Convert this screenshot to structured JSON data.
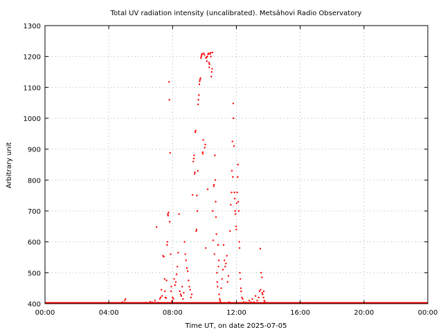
{
  "chart_data": {
    "type": "scatter",
    "title": "Total UV radiation intensity (uncalibrated). Metsähovi Radio Observatory",
    "xlabel": "Time UT, on date 2025-07-05",
    "ylabel": "Arbitrary unit",
    "x_unit": "hours UT",
    "xlim": [
      0,
      24
    ],
    "ylim": [
      400,
      1300
    ],
    "x_ticks": [
      0,
      4,
      8,
      12,
      16,
      20,
      24
    ],
    "x_tick_labels": [
      "00:00",
      "04:00",
      "08:00",
      "12:00",
      "16:00",
      "20:00",
      "00:00"
    ],
    "y_ticks": [
      400,
      500,
      600,
      700,
      800,
      900,
      1000,
      1100,
      1200,
      1300
    ],
    "y_tick_labels": [
      "400",
      "500",
      "600",
      "700",
      "800",
      "900",
      "1000",
      "1100",
      "1200",
      "1300"
    ],
    "grid": true,
    "marker_color": "#ff0000",
    "baseline": {
      "value": 400,
      "from_x": 0,
      "to_x": 24
    },
    "points": [
      [
        4.85,
        405
      ],
      [
        5.0,
        410
      ],
      [
        5.05,
        415
      ],
      [
        6.3,
        402
      ],
      [
        6.6,
        406
      ],
      [
        6.75,
        404
      ],
      [
        6.9,
        410
      ],
      [
        7.0,
        648
      ],
      [
        7.1,
        402
      ],
      [
        7.2,
        415
      ],
      [
        7.25,
        420
      ],
      [
        7.3,
        445
      ],
      [
        7.35,
        425
      ],
      [
        7.4,
        555
      ],
      [
        7.45,
        552
      ],
      [
        7.5,
        480
      ],
      [
        7.52,
        440
      ],
      [
        7.55,
        420
      ],
      [
        7.6,
        418
      ],
      [
        7.62,
        475
      ],
      [
        7.65,
        590
      ],
      [
        7.68,
        600
      ],
      [
        7.7,
        690
      ],
      [
        7.72,
        685
      ],
      [
        7.75,
        695
      ],
      [
        7.78,
        1118
      ],
      [
        7.8,
        1060
      ],
      [
        7.82,
        665
      ],
      [
        7.85,
        888
      ],
      [
        7.88,
        560
      ],
      [
        7.9,
        440
      ],
      [
        7.92,
        455
      ],
      [
        7.95,
        408
      ],
      [
        8.0,
        420
      ],
      [
        8.05,
        415
      ],
      [
        8.1,
        480
      ],
      [
        8.15,
        460
      ],
      [
        8.2,
        470
      ],
      [
        8.25,
        495
      ],
      [
        8.3,
        520
      ],
      [
        8.35,
        565
      ],
      [
        8.4,
        690
      ],
      [
        8.45,
        440
      ],
      [
        8.5,
        430
      ],
      [
        8.55,
        425
      ],
      [
        8.6,
        455
      ],
      [
        8.65,
        415
      ],
      [
        8.7,
        435
      ],
      [
        8.75,
        600
      ],
      [
        8.8,
        560
      ],
      [
        8.85,
        540
      ],
      [
        8.9,
        515
      ],
      [
        8.95,
        505
      ],
      [
        9.0,
        475
      ],
      [
        9.05,
        455
      ],
      [
        9.1,
        445
      ],
      [
        9.15,
        420
      ],
      [
        9.2,
        430
      ],
      [
        9.25,
        752
      ],
      [
        9.3,
        860
      ],
      [
        9.33,
        870
      ],
      [
        9.35,
        880
      ],
      [
        9.38,
        820
      ],
      [
        9.4,
        825
      ],
      [
        9.42,
        955
      ],
      [
        9.45,
        960
      ],
      [
        9.48,
        635
      ],
      [
        9.5,
        640
      ],
      [
        9.52,
        750
      ],
      [
        9.55,
        700
      ],
      [
        9.58,
        830
      ],
      [
        9.6,
        1045
      ],
      [
        9.62,
        1060
      ],
      [
        9.65,
        1075
      ],
      [
        9.68,
        1110
      ],
      [
        9.7,
        1120
      ],
      [
        9.72,
        1125
      ],
      [
        9.75,
        1130
      ],
      [
        9.78,
        1195
      ],
      [
        9.8,
        1200
      ],
      [
        9.82,
        1205
      ],
      [
        9.85,
        1208
      ],
      [
        9.88,
        890
      ],
      [
        9.9,
        885
      ],
      [
        9.92,
        930
      ],
      [
        9.95,
        1210
      ],
      [
        10.0,
        1205
      ],
      [
        10.02,
        905
      ],
      [
        10.05,
        915
      ],
      [
        10.08,
        580
      ],
      [
        10.1,
        1195
      ],
      [
        10.12,
        1198
      ],
      [
        10.15,
        1185
      ],
      [
        10.18,
        1200
      ],
      [
        10.2,
        770
      ],
      [
        10.22,
        1207
      ],
      [
        10.25,
        1210
      ],
      [
        10.28,
        1180
      ],
      [
        10.3,
        1165
      ],
      [
        10.32,
        1175
      ],
      [
        10.35,
        1208
      ],
      [
        10.38,
        1212
      ],
      [
        10.4,
        1200
      ],
      [
        10.42,
        1135
      ],
      [
        10.45,
        1150
      ],
      [
        10.48,
        1160
      ],
      [
        10.5,
        1213
      ],
      [
        10.52,
        700
      ],
      [
        10.55,
        605
      ],
      [
        10.58,
        780
      ],
      [
        10.6,
        785
      ],
      [
        10.62,
        560
      ],
      [
        10.65,
        880
      ],
      [
        10.68,
        800
      ],
      [
        10.7,
        730
      ],
      [
        10.72,
        680
      ],
      [
        10.75,
        625
      ],
      [
        10.78,
        500
      ],
      [
        10.8,
        470
      ],
      [
        10.82,
        455
      ],
      [
        10.85,
        590
      ],
      [
        10.88,
        520
      ],
      [
        10.9,
        540
      ],
      [
        10.92,
        430
      ],
      [
        10.95,
        415
      ],
      [
        10.98,
        410
      ],
      [
        11.0,
        405
      ],
      [
        11.05,
        450
      ],
      [
        11.1,
        480
      ],
      [
        11.15,
        510
      ],
      [
        11.2,
        590
      ],
      [
        11.25,
        540
      ],
      [
        11.3,
        520
      ],
      [
        11.35,
        530
      ],
      [
        11.4,
        555
      ],
      [
        11.45,
        470
      ],
      [
        11.5,
        490
      ],
      [
        11.55,
        405
      ],
      [
        11.6,
        635
      ],
      [
        11.65,
        720
      ],
      [
        11.7,
        760
      ],
      [
        11.72,
        830
      ],
      [
        11.75,
        925
      ],
      [
        11.78,
        810
      ],
      [
        11.8,
        1048
      ],
      [
        11.82,
        1000
      ],
      [
        11.85,
        910
      ],
      [
        11.88,
        760
      ],
      [
        11.9,
        740
      ],
      [
        11.92,
        700
      ],
      [
        11.95,
        690
      ],
      [
        11.98,
        650
      ],
      [
        12.0,
        640
      ],
      [
        12.02,
        725
      ],
      [
        12.05,
        760
      ],
      [
        12.08,
        810
      ],
      [
        12.1,
        850
      ],
      [
        12.12,
        730
      ],
      [
        12.15,
        700
      ],
      [
        12.18,
        600
      ],
      [
        12.2,
        580
      ],
      [
        12.22,
        500
      ],
      [
        12.25,
        480
      ],
      [
        12.28,
        450
      ],
      [
        12.3,
        440
      ],
      [
        12.35,
        420
      ],
      [
        12.4,
        415
      ],
      [
        12.45,
        405
      ],
      [
        12.6,
        402
      ],
      [
        12.8,
        410
      ],
      [
        12.9,
        405
      ],
      [
        13.0,
        415
      ],
      [
        13.1,
        405
      ],
      [
        13.2,
        425
      ],
      [
        13.3,
        410
      ],
      [
        13.4,
        420
      ],
      [
        13.45,
        440
      ],
      [
        13.5,
        578
      ],
      [
        13.52,
        445
      ],
      [
        13.55,
        500
      ],
      [
        13.6,
        485
      ],
      [
        13.62,
        435
      ],
      [
        13.65,
        430
      ],
      [
        13.7,
        420
      ],
      [
        13.72,
        440
      ],
      [
        13.75,
        410
      ],
      [
        13.78,
        405
      ],
      [
        16.0,
        404
      ]
    ]
  }
}
